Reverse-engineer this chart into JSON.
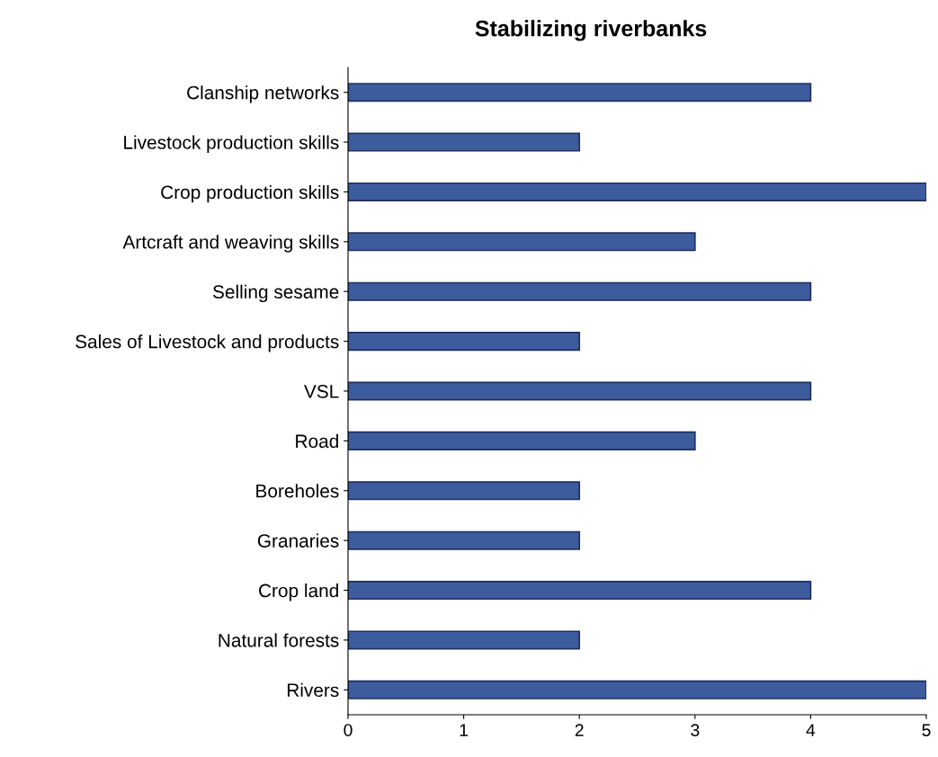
{
  "chart_data": {
    "type": "bar",
    "orientation": "horizontal",
    "title": "Stabilizing riverbanks",
    "categories": [
      "Clanship networks",
      "Livestock production skills",
      "Crop production skills",
      "Artcraft and weaving skills",
      "Selling sesame",
      "Sales of Livestock and products",
      "VSL",
      "Road",
      "Boreholes",
      "Granaries",
      "Crop land",
      "Natural forests",
      "Rivers"
    ],
    "values": [
      4,
      2,
      5,
      3,
      4,
      2,
      4,
      3,
      2,
      2,
      4,
      2,
      5
    ],
    "color": "#3d5c9e",
    "xlim": [
      0,
      5
    ],
    "xticks": [
      0,
      1,
      2,
      3,
      4,
      5
    ],
    "grid": false,
    "legend": false
  }
}
